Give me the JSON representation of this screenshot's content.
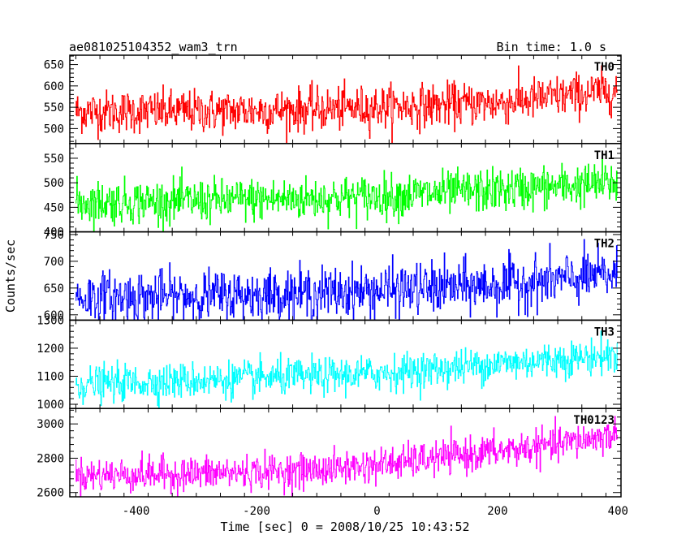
{
  "header": {
    "title": "ae081025104352_wam3_trn",
    "bin_time": "Bin time: 1.0 s"
  },
  "chart_data": {
    "type": "line",
    "title": "ae081025104352_wam3_trn",
    "subtitle": "Bin time: 1.0 s",
    "xlabel": "Time [sec] 0 = 2008/10/25 10:43:52",
    "ylabel": "Counts/sec",
    "xlim": [
      -510,
      405
    ],
    "x_ticks": [
      -400,
      -200,
      0,
      200,
      400
    ],
    "x_range": [
      -500,
      399
    ],
    "bin_time_s": 1.0,
    "grid": false,
    "panels": [
      {
        "name": "TH0",
        "color": "#ff0000",
        "ylim": [
          465,
          672
        ],
        "y_ticks": [
          500,
          550,
          600,
          650
        ],
        "trend": {
          "x": [
            -500,
            -300,
            -100,
            0,
            100,
            200,
            300,
            399
          ],
          "y": [
            540,
            540,
            545,
            550,
            555,
            560,
            575,
            590
          ]
        },
        "spread": 25
      },
      {
        "name": "TH1",
        "color": "#00ff00",
        "ylim": [
          400,
          580
        ],
        "y_ticks": [
          400,
          450,
          500,
          550
        ],
        "trend": {
          "x": [
            -500,
            -300,
            -100,
            0,
            100,
            200,
            300,
            399
          ],
          "y": [
            460,
            463,
            468,
            472,
            478,
            485,
            492,
            500
          ]
        },
        "spread": 22
      },
      {
        "name": "TH2",
        "color": "#0000ff",
        "ylim": [
          590,
          755
        ],
        "y_ticks": [
          600,
          650,
          700,
          750
        ],
        "trend": {
          "x": [
            -500,
            -300,
            -100,
            0,
            100,
            200,
            300,
            399
          ],
          "y": [
            632,
            635,
            640,
            645,
            650,
            655,
            665,
            675
          ]
        },
        "spread": 24
      },
      {
        "name": "TH3",
        "color": "#00ffff",
        "ylim": [
          985,
          1300
        ],
        "y_ticks": [
          1000,
          1100,
          1200,
          1300
        ],
        "trend": {
          "x": [
            -500,
            -300,
            -100,
            0,
            100,
            200,
            300,
            399
          ],
          "y": [
            1070,
            1085,
            1100,
            1110,
            1125,
            1145,
            1160,
            1175
          ]
        },
        "spread": 32
      },
      {
        "name": "TH0123",
        "color": "#ff00ff",
        "ylim": [
          2575,
          3090
        ],
        "y_ticks": [
          2600,
          2800,
          3000
        ],
        "trend": {
          "x": [
            -500,
            -300,
            -100,
            0,
            100,
            200,
            300,
            399
          ],
          "y": [
            2700,
            2710,
            2730,
            2760,
            2800,
            2840,
            2880,
            2940
          ]
        },
        "spread": 50
      }
    ]
  }
}
